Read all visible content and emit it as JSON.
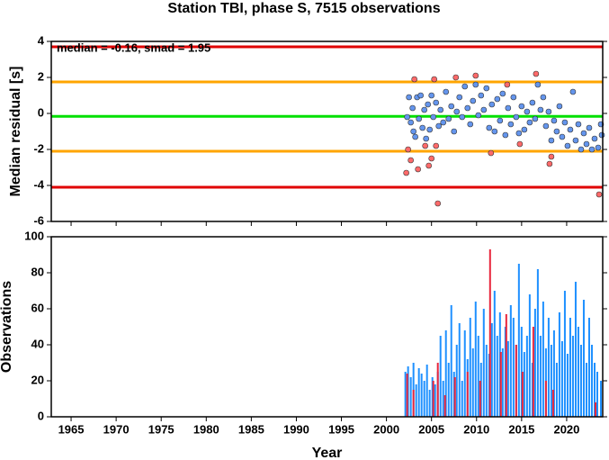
{
  "chart_data": [
    {
      "type": "scatter",
      "title": "Station TBI, phase S, 7515 observations",
      "ylabel": "Median residual [s]",
      "annotation": "median = -0.16, smad = 1.95",
      "xlim": [
        1962.8,
        2024
      ],
      "xticks": [
        1965,
        1970,
        1975,
        1980,
        1985,
        1990,
        1995,
        2000,
        2005,
        2010,
        2015,
        2020
      ],
      "ylim": [
        -6,
        4
      ],
      "yticks": [
        -6,
        -4,
        -2,
        0,
        2,
        4
      ],
      "hlines": [
        {
          "value": 3.7,
          "color": "#e00000"
        },
        {
          "value": 1.75,
          "color": "#ffa500"
        },
        {
          "value": -0.16,
          "color": "#00e000"
        },
        {
          "value": -2.1,
          "color": "#ffa500"
        },
        {
          "value": -4.1,
          "color": "#e00000"
        }
      ],
      "series": [
        {
          "color": "#6495ed",
          "x": [
            2002.3,
            2002.5,
            2002.7,
            2002.9,
            2003.0,
            2003.2,
            2003.4,
            2003.6,
            2003.8,
            2004.0,
            2004.2,
            2004.4,
            2004.6,
            2004.8,
            2005.0,
            2005.2,
            2005.5,
            2005.8,
            2006.0,
            2006.3,
            2006.6,
            2006.9,
            2007.2,
            2007.5,
            2007.8,
            2008.1,
            2008.4,
            2008.7,
            2009.0,
            2009.3,
            2009.6,
            2009.9,
            2010.2,
            2010.5,
            2010.8,
            2011.1,
            2011.4,
            2011.7,
            2012.0,
            2012.3,
            2012.6,
            2012.9,
            2013.2,
            2013.5,
            2013.8,
            2014.1,
            2014.4,
            2014.7,
            2015.0,
            2015.3,
            2015.6,
            2015.9,
            2016.2,
            2016.5,
            2016.8,
            2017.1,
            2017.4,
            2017.7,
            2018.0,
            2018.3,
            2018.6,
            2018.9,
            2019.2,
            2019.5,
            2019.8,
            2020.1,
            2020.4,
            2020.7,
            2021.0,
            2021.3,
            2021.6,
            2021.9,
            2022.2,
            2022.5,
            2022.8,
            2023.1,
            2023.5,
            2023.8,
            2023.9
          ],
          "values": [
            -0.2,
            0.9,
            -0.5,
            0.3,
            -1.0,
            -1.3,
            0.9,
            -0.3,
            1.0,
            -0.8,
            0.2,
            -1.4,
            0.5,
            -0.9,
            1.0,
            -0.2,
            0.6,
            -0.7,
            0.2,
            -0.5,
            1.2,
            -0.3,
            0.4,
            -1.0,
            0.1,
            0.9,
            -0.2,
            1.5,
            0.3,
            -0.6,
            0.7,
            1.6,
            -0.1,
            1.0,
            0.2,
            1.4,
            -0.8,
            0.5,
            -1.0,
            0.8,
            -0.4,
            1.1,
            -1.2,
            0.3,
            -0.6,
            0.9,
            -0.2,
            -1.1,
            0.4,
            -0.9,
            0.1,
            -0.5,
            0.6,
            -0.3,
            1.6,
            0.2,
            0.9,
            -0.7,
            0.1,
            -1.5,
            -0.4,
            -1.0,
            0.4,
            -1.3,
            -0.5,
            -1.8,
            -0.9,
            1.2,
            -1.5,
            -0.6,
            -2.0,
            -1.1,
            -1.7,
            -0.8,
            -2.0,
            -1.4,
            -1.9,
            -0.6,
            -1.2
          ]
        },
        {
          "color": "#ff6a6a",
          "x": [
            2002.2,
            2002.4,
            2002.7,
            2003.1,
            2003.5,
            2004.3,
            2004.7,
            2005.0,
            2005.3,
            2005.5,
            2005.7,
            2007.7,
            2009.9,
            2011.6,
            2013.4,
            2014.8,
            2016.6,
            2018.1,
            2018.3,
            2023.6
          ],
          "values": [
            -3.3,
            -2.0,
            -2.6,
            1.9,
            -3.1,
            -1.8,
            -2.9,
            -2.5,
            1.9,
            -1.8,
            -5.0,
            2.0,
            2.1,
            -2.2,
            1.6,
            -1.7,
            2.2,
            -2.8,
            -2.4,
            -4.5
          ]
        }
      ]
    },
    {
      "type": "bar",
      "ylabel": "Observations",
      "xlabel": "Year",
      "xlim": [
        1962.8,
        2024
      ],
      "xticks": [
        1965,
        1970,
        1975,
        1980,
        1985,
        1990,
        1995,
        2000,
        2005,
        2010,
        2015,
        2020
      ],
      "ylim": [
        0,
        100
      ],
      "yticks": [
        0,
        20,
        40,
        60,
        80,
        100
      ],
      "series": [
        {
          "color": "#1e90ff",
          "x": [
            2002.1,
            2002.4,
            2002.7,
            2003.0,
            2003.3,
            2003.6,
            2003.9,
            2004.2,
            2004.5,
            2004.8,
            2005.1,
            2005.4,
            2005.7,
            2006.0,
            2006.3,
            2006.6,
            2006.9,
            2007.2,
            2007.5,
            2007.8,
            2008.1,
            2008.4,
            2008.7,
            2009.0,
            2009.3,
            2009.6,
            2009.9,
            2010.2,
            2010.5,
            2010.8,
            2011.1,
            2011.4,
            2011.7,
            2012.0,
            2012.3,
            2012.6,
            2012.9,
            2013.2,
            2013.5,
            2013.8,
            2014.1,
            2014.4,
            2014.7,
            2015.0,
            2015.3,
            2015.6,
            2015.9,
            2016.2,
            2016.5,
            2016.8,
            2017.1,
            2017.4,
            2017.7,
            2018.0,
            2018.3,
            2018.6,
            2018.9,
            2019.2,
            2019.5,
            2019.8,
            2020.1,
            2020.4,
            2020.7,
            2021.0,
            2021.3,
            2021.6,
            2021.9,
            2022.2,
            2022.5,
            2022.8,
            2023.1,
            2023.4,
            2023.8
          ],
          "values": [
            25,
            28,
            22,
            30,
            18,
            27,
            24,
            20,
            29,
            15,
            22,
            18,
            25,
            45,
            20,
            48,
            30,
            62,
            25,
            40,
            52,
            20,
            48,
            32,
            55,
            38,
            64,
            45,
            30,
            60,
            40,
            35,
            52,
            70,
            45,
            58,
            38,
            50,
            42,
            62,
            55,
            40,
            85,
            50,
            36,
            45,
            68,
            30,
            60,
            82,
            45,
            64,
            38,
            55,
            40,
            48,
            30,
            58,
            42,
            70,
            35,
            55,
            45,
            75,
            50,
            40,
            65,
            30,
            55,
            40,
            30,
            25,
            20
          ]
        },
        {
          "color": "#e8263c",
          "x": [
            2002.3,
            2003.0,
            2005.2,
            2005.7,
            2006.5,
            2007.6,
            2009.0,
            2010.4,
            2011.5,
            2012.7,
            2013.3,
            2014.4,
            2015.1,
            2016.3,
            2017.7,
            2018.5,
            2023.2
          ],
          "values": [
            24,
            15,
            20,
            30,
            12,
            22,
            25,
            20,
            93,
            36,
            57,
            40,
            25,
            50,
            20,
            15,
            8
          ]
        }
      ]
    }
  ]
}
